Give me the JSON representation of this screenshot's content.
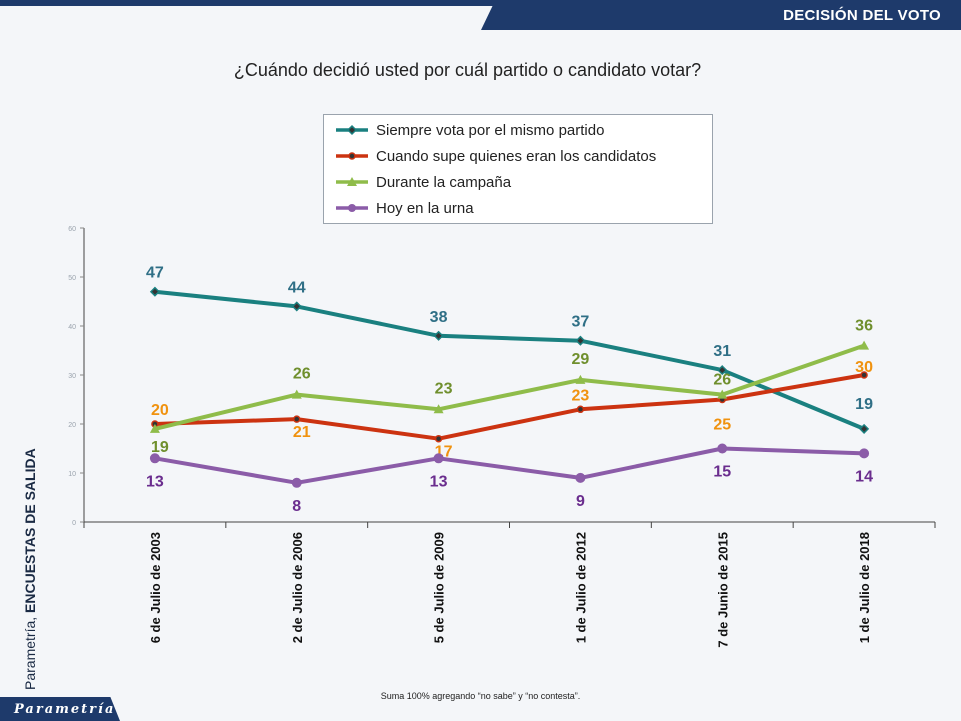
{
  "header": {
    "section_title": "DECISIÓN DEL VOTO"
  },
  "footer": {
    "brand": "Parametría",
    "source_prefix": "Parametría, ",
    "source_strong": "ENCUESTAS DE SALIDA",
    "note": "Suma 100%  agregando “no sabe” y “no contesta”."
  },
  "chart_data": {
    "type": "line",
    "title": "¿Cuándo decidió usted por cuál partido o candidato votar?",
    "categories": [
      "6 de Julio de 2003",
      "2 de Julio de 2006",
      "5 de Julio de 2009",
      "1 de Julio de 2012",
      "7 de Junio de 2015",
      "1 de Julio de 2018"
    ],
    "ylim": [
      0,
      60
    ],
    "y_ticks": [
      "0",
      "10",
      "20",
      "30",
      "40",
      "50",
      "60"
    ],
    "legend_position": "top-center",
    "grid": false,
    "series": [
      {
        "name": "Siempre vota por el mismo partido",
        "values": [
          47,
          44,
          38,
          37,
          31,
          19
        ],
        "color": "#1a8080",
        "marker": "diamond"
      },
      {
        "name": "Cuando supe quienes eran los candidatos",
        "values": [
          20,
          21,
          17,
          23,
          25,
          30
        ],
        "color": "#cc3311",
        "marker": "circle"
      },
      {
        "name": "Durante la campaña",
        "values": [
          19,
          26,
          23,
          29,
          26,
          36
        ],
        "color": "#8fbc4a",
        "marker": "triangle"
      },
      {
        "name": "Hoy en la urna",
        "values": [
          13,
          8,
          13,
          9,
          15,
          14
        ],
        "color": "#8b5ca8",
        "marker": "circle"
      }
    ],
    "label_colors": [
      "#2f6f86",
      "#f0920f",
      "#6f8f2d",
      "#6a2d8e"
    ]
  }
}
